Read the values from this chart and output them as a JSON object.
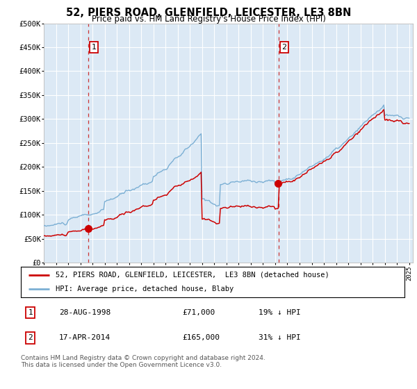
{
  "title": "52, PIERS ROAD, GLENFIELD, LEICESTER, LE3 8BN",
  "subtitle": "Price paid vs. HM Land Registry's House Price Index (HPI)",
  "background_color": "#ffffff",
  "plot_bg_color": "#dce9f5",
  "grid_color": "#ffffff",
  "red_line_color": "#cc0000",
  "blue_line_color": "#7bafd4",
  "transaction1": {
    "year": 1998.65,
    "price": 71000
  },
  "transaction2": {
    "year": 2014.29,
    "price": 165000
  },
  "legend_line1": "52, PIERS ROAD, GLENFIELD, LEICESTER,  LE3 8BN (detached house)",
  "legend_line2": "HPI: Average price, detached house, Blaby",
  "footer": "Contains HM Land Registry data © Crown copyright and database right 2024.\nThis data is licensed under the Open Government Licence v3.0.",
  "table_rows": [
    {
      "label": "1",
      "date": "28-AUG-1998",
      "price": "£71,000",
      "note": "19% ↓ HPI"
    },
    {
      "label": "2",
      "date": "17-APR-2014",
      "price": "£165,000",
      "note": "31% ↓ HPI"
    }
  ]
}
